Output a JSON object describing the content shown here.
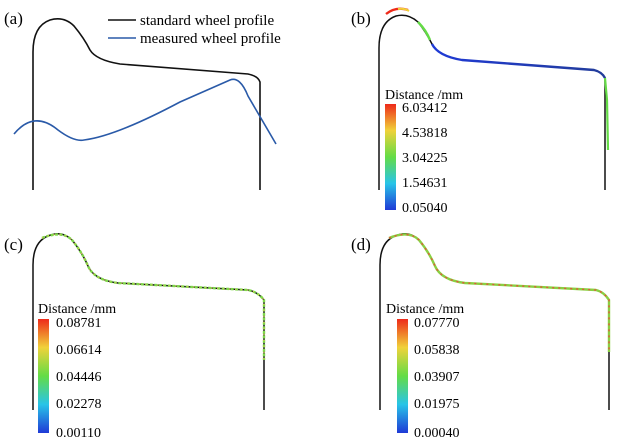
{
  "panels": [
    {
      "id": "a",
      "label": "(a)",
      "legend": [
        {
          "text": "standard wheel profile",
          "color": "#111111"
        },
        {
          "text": "measured wheel profile",
          "color": "#2a5aa8"
        }
      ]
    },
    {
      "id": "b",
      "label": "(b)",
      "colorbar": {
        "title": "Distance /mm",
        "ticks": [
          "6.03412",
          "4.53818",
          "3.04225",
          "1.54631",
          "0.05040"
        ],
        "min": 0.0504,
        "max": 6.03412
      }
    },
    {
      "id": "c",
      "label": "(c)",
      "colorbar": {
        "title": "Distance /mm",
        "ticks": [
          "0.08781",
          "0.06614",
          "0.04446",
          "0.02278",
          "0.00110"
        ],
        "min": 0.0011,
        "max": 0.08781
      }
    },
    {
      "id": "d",
      "label": "(d)",
      "colorbar": {
        "title": "Distance /mm",
        "ticks": [
          "0.07770",
          "0.05838",
          "0.03907",
          "0.01975",
          "0.00040"
        ],
        "min": 0.0004,
        "max": 0.0777
      }
    }
  ],
  "colors": {
    "standard_profile": "#111111",
    "measured_profile": "#2a5aa8",
    "colormap": [
      "#1f3ad6",
      "#28c4e8",
      "#64dc46",
      "#f0d23a",
      "#ee2a1a"
    ]
  }
}
